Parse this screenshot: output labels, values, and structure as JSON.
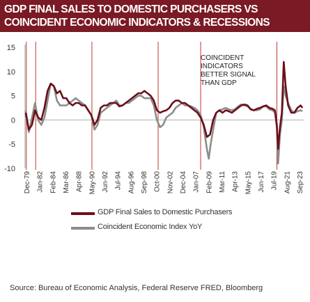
{
  "title": {
    "line1": "GDP FINAL SALES TO DOMESTIC PURCHASERS VS",
    "line2": "COINCIDENT ECONOMIC INDICATORS & RECESSIONS"
  },
  "source": "Source:  Bureau of Economic Analysis, Federal Reserve FRED, Bloomberg",
  "chart_data": {
    "type": "line",
    "title": "GDP FINAL SALES TO DOMESTIC PURCHASERS VS COINCIDENT ECONOMIC INDICATORS & RECESSIONS",
    "ylim": [
      -10,
      15
    ],
    "yticks": [
      -10,
      -5,
      0,
      5,
      10,
      15
    ],
    "xlim": [
      1979.9,
      2024.5
    ],
    "xtick_labels": [
      "Dec-79",
      "Jan-82",
      "Feb-84",
      "Mar-86",
      "Apr-88",
      "May-90",
      "Jun-92",
      "Jul-94",
      "Aug-96",
      "Sep-98",
      "Oct-00",
      "Nov-02",
      "Dec-04",
      "Jan-07",
      "Feb-09",
      "Mar-11",
      "Apr-13",
      "May-15",
      "Jun-17",
      "Jul-19",
      "Aug-21",
      "Sep-23"
    ],
    "recession_markers": [
      1980.1,
      1981.6,
      1990.6,
      2001.2,
      2008.0,
      2020.2
    ],
    "annotation": "COINCIDENT INDICATORS BETTER SIGNAL THAN GDP",
    "grid": false,
    "legend_position": "bottom",
    "series": [
      {
        "name": "GDP Final Sales to Domestic Purchasers",
        "color": "#6b0f1a",
        "points": [
          [
            1980.0,
            1.5
          ],
          [
            1980.5,
            -2.0
          ],
          [
            1981.0,
            -1.0
          ],
          [
            1981.5,
            2.0
          ],
          [
            1982.0,
            0.5
          ],
          [
            1982.5,
            0.0
          ],
          [
            1983.0,
            2.5
          ],
          [
            1983.5,
            6.0
          ],
          [
            1984.0,
            7.5
          ],
          [
            1984.5,
            7.0
          ],
          [
            1985.0,
            5.5
          ],
          [
            1985.5,
            6.0
          ],
          [
            1986.0,
            4.5
          ],
          [
            1986.5,
            4.5
          ],
          [
            1987.0,
            3.5
          ],
          [
            1987.5,
            3.0
          ],
          [
            1988.0,
            3.5
          ],
          [
            1988.5,
            3.5
          ],
          [
            1989.0,
            3.0
          ],
          [
            1989.5,
            3.0
          ],
          [
            1990.0,
            2.0
          ],
          [
            1990.5,
            1.0
          ],
          [
            1991.0,
            -1.0
          ],
          [
            1991.5,
            0.0
          ],
          [
            1992.0,
            2.5
          ],
          [
            1992.5,
            3.0
          ],
          [
            1993.0,
            3.0
          ],
          [
            1993.5,
            3.5
          ],
          [
            1994.0,
            3.5
          ],
          [
            1994.5,
            3.5
          ],
          [
            1995.0,
            2.8
          ],
          [
            1995.5,
            3.0
          ],
          [
            1996.0,
            3.5
          ],
          [
            1996.5,
            4.0
          ],
          [
            1997.0,
            4.5
          ],
          [
            1997.5,
            5.0
          ],
          [
            1998.0,
            5.5
          ],
          [
            1998.5,
            5.5
          ],
          [
            1999.0,
            6.0
          ],
          [
            1999.5,
            5.5
          ],
          [
            2000.0,
            5.0
          ],
          [
            2000.5,
            4.0
          ],
          [
            2001.0,
            2.0
          ],
          [
            2001.5,
            1.5
          ],
          [
            2002.0,
            1.8
          ],
          [
            2002.5,
            2.0
          ],
          [
            2003.0,
            2.5
          ],
          [
            2003.5,
            3.5
          ],
          [
            2004.0,
            4.0
          ],
          [
            2004.5,
            4.0
          ],
          [
            2005.0,
            3.5
          ],
          [
            2005.5,
            3.5
          ],
          [
            2006.0,
            3.0
          ],
          [
            2006.5,
            2.5
          ],
          [
            2007.0,
            2.0
          ],
          [
            2007.5,
            1.5
          ],
          [
            2008.0,
            0.5
          ],
          [
            2008.5,
            -1.0
          ],
          [
            2009.0,
            -3.5
          ],
          [
            2009.5,
            -3.0
          ],
          [
            2010.0,
            0.0
          ],
          [
            2010.5,
            1.5
          ],
          [
            2011.0,
            2.0
          ],
          [
            2011.5,
            1.5
          ],
          [
            2012.0,
            2.0
          ],
          [
            2012.5,
            1.8
          ],
          [
            2013.0,
            1.5
          ],
          [
            2013.5,
            2.0
          ],
          [
            2014.0,
            2.5
          ],
          [
            2014.5,
            3.0
          ],
          [
            2015.0,
            3.2
          ],
          [
            2015.5,
            3.0
          ],
          [
            2016.0,
            2.2
          ],
          [
            2016.5,
            2.0
          ],
          [
            2017.0,
            2.3
          ],
          [
            2017.5,
            2.5
          ],
          [
            2018.0,
            2.8
          ],
          [
            2018.5,
            3.0
          ],
          [
            2019.0,
            2.5
          ],
          [
            2019.5,
            2.3
          ],
          [
            2019.9,
            2.0
          ],
          [
            2020.2,
            -1.0
          ],
          [
            2020.4,
            -6.0
          ],
          [
            2020.7,
            -1.5
          ],
          [
            2021.0,
            1.5
          ],
          [
            2021.3,
            12.0
          ],
          [
            2021.6,
            7.0
          ],
          [
            2022.0,
            3.0
          ],
          [
            2022.5,
            1.5
          ],
          [
            2023.0,
            1.5
          ],
          [
            2023.5,
            2.5
          ],
          [
            2024.0,
            3.0
          ],
          [
            2024.3,
            2.5
          ]
        ]
      },
      {
        "name": "Coincident Economic Index YoY",
        "color": "#8c8c8c",
        "points": [
          [
            1980.0,
            2.0
          ],
          [
            1980.5,
            -2.5
          ],
          [
            1981.0,
            0.5
          ],
          [
            1981.5,
            3.5
          ],
          [
            1982.0,
            0.0
          ],
          [
            1982.5,
            -1.0
          ],
          [
            1983.0,
            0.5
          ],
          [
            1983.5,
            4.0
          ],
          [
            1984.0,
            7.5
          ],
          [
            1984.5,
            7.0
          ],
          [
            1985.0,
            4.0
          ],
          [
            1985.5,
            3.0
          ],
          [
            1986.0,
            3.0
          ],
          [
            1986.5,
            3.0
          ],
          [
            1987.0,
            3.5
          ],
          [
            1987.5,
            4.0
          ],
          [
            1988.0,
            4.5
          ],
          [
            1988.5,
            4.0
          ],
          [
            1989.0,
            3.5
          ],
          [
            1989.5,
            3.0
          ],
          [
            1990.0,
            2.0
          ],
          [
            1990.5,
            1.0
          ],
          [
            1991.0,
            -2.0
          ],
          [
            1991.5,
            -1.0
          ],
          [
            1992.0,
            1.5
          ],
          [
            1992.5,
            2.0
          ],
          [
            1993.0,
            2.5
          ],
          [
            1993.5,
            3.0
          ],
          [
            1994.0,
            3.5
          ],
          [
            1994.5,
            4.0
          ],
          [
            1995.0,
            3.0
          ],
          [
            1995.5,
            3.0
          ],
          [
            1996.0,
            3.5
          ],
          [
            1996.5,
            3.5
          ],
          [
            1997.0,
            4.0
          ],
          [
            1997.5,
            4.5
          ],
          [
            1998.0,
            5.0
          ],
          [
            1998.5,
            5.0
          ],
          [
            1999.0,
            4.5
          ],
          [
            1999.5,
            4.5
          ],
          [
            2000.0,
            4.5
          ],
          [
            2000.5,
            3.0
          ],
          [
            2001.0,
            0.0
          ],
          [
            2001.5,
            -1.5
          ],
          [
            2002.0,
            -1.0
          ],
          [
            2002.5,
            0.5
          ],
          [
            2003.0,
            1.0
          ],
          [
            2003.5,
            1.5
          ],
          [
            2004.0,
            2.5
          ],
          [
            2004.5,
            3.0
          ],
          [
            2005.0,
            3.5
          ],
          [
            2005.5,
            3.0
          ],
          [
            2006.0,
            3.0
          ],
          [
            2006.5,
            2.8
          ],
          [
            2007.0,
            2.5
          ],
          [
            2007.5,
            2.0
          ],
          [
            2008.0,
            1.0
          ],
          [
            2008.5,
            -1.5
          ],
          [
            2009.0,
            -6.0
          ],
          [
            2009.3,
            -8.0
          ],
          [
            2009.6,
            -5.0
          ],
          [
            2010.0,
            -2.0
          ],
          [
            2010.5,
            1.5
          ],
          [
            2011.0,
            2.0
          ],
          [
            2011.5,
            2.2
          ],
          [
            2012.0,
            2.5
          ],
          [
            2012.5,
            2.2
          ],
          [
            2013.0,
            2.0
          ],
          [
            2013.5,
            2.2
          ],
          [
            2014.0,
            2.8
          ],
          [
            2014.5,
            3.2
          ],
          [
            2015.0,
            3.0
          ],
          [
            2015.5,
            2.8
          ],
          [
            2016.0,
            2.3
          ],
          [
            2016.5,
            2.0
          ],
          [
            2017.0,
            2.0
          ],
          [
            2017.5,
            2.2
          ],
          [
            2018.0,
            2.8
          ],
          [
            2018.5,
            2.8
          ],
          [
            2019.0,
            2.2
          ],
          [
            2019.5,
            2.0
          ],
          [
            2019.9,
            1.5
          ],
          [
            2020.2,
            -1.5
          ],
          [
            2020.4,
            -9.0
          ],
          [
            2020.7,
            -3.0
          ],
          [
            2021.0,
            0.0
          ],
          [
            2021.3,
            7.0
          ],
          [
            2021.6,
            5.0
          ],
          [
            2022.0,
            3.5
          ],
          [
            2022.5,
            2.0
          ],
          [
            2023.0,
            1.5
          ],
          [
            2023.5,
            1.8
          ],
          [
            2024.0,
            2.0
          ],
          [
            2024.3,
            1.8
          ]
        ]
      }
    ]
  }
}
